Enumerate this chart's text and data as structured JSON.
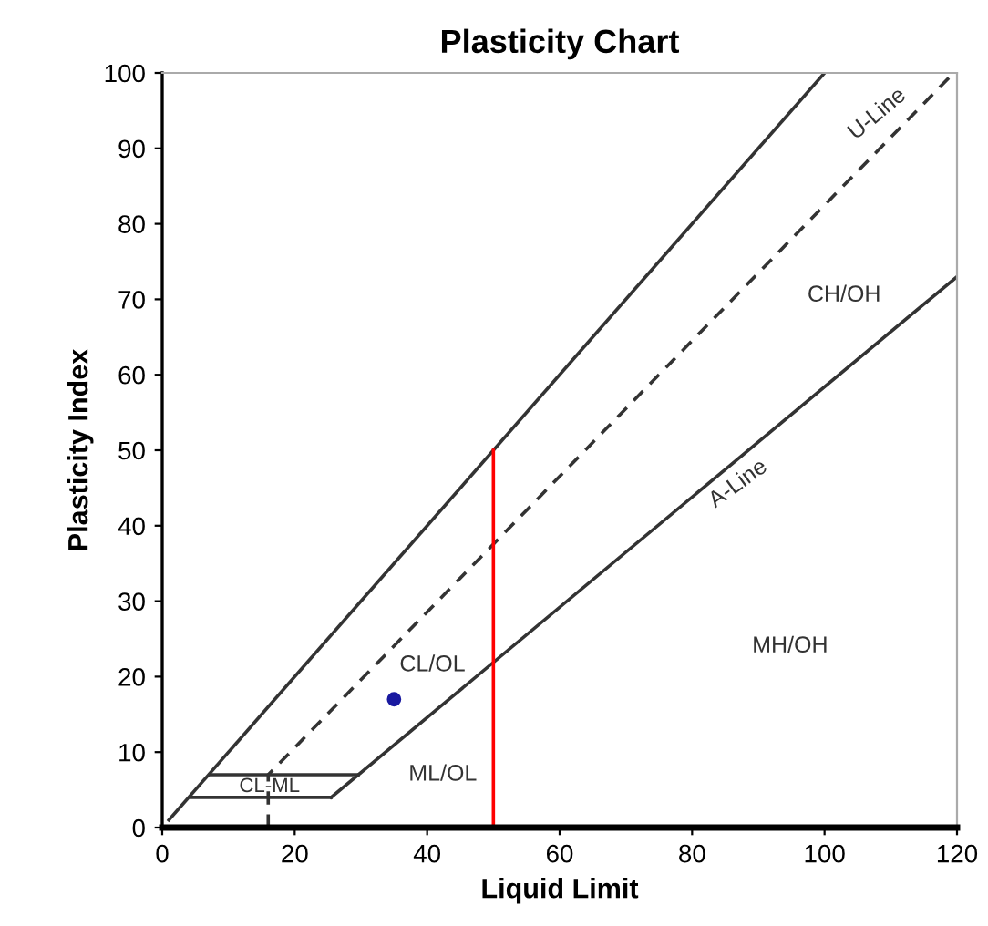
{
  "chart_data": {
    "type": "line",
    "title": "Plasticity Chart",
    "xlabel": "Liquid Limit",
    "ylabel": "Plasticity Index",
    "xlim": [
      0,
      120
    ],
    "xticks": [
      0,
      20,
      40,
      60,
      80,
      100,
      120
    ],
    "ylim": [
      0,
      100
    ],
    "yticks": [
      0,
      10,
      20,
      30,
      40,
      50,
      60,
      70,
      80,
      90,
      100
    ],
    "grid": false,
    "legend": false,
    "series": [
      {
        "color": "#333333",
        "x": [
          1,
          100
        ],
        "values": [
          1,
          100
        ]
      },
      {
        "color": "#333333",
        "line_style": "dashed",
        "x": [
          16,
          16,
          119.5
        ],
        "values": [
          0,
          7,
          100
        ]
      },
      {
        "color": "#333333",
        "x": [
          25.5,
          120
        ],
        "values": [
          4,
          73
        ]
      },
      {
        "color": "#333333",
        "x": [
          7.2,
          29.6
        ],
        "values": [
          7,
          7
        ]
      },
      {
        "color": "#333333",
        "x": [
          4.4,
          25.5
        ],
        "values": [
          4,
          4
        ]
      },
      {
        "color": "#ff0000",
        "x": [
          50,
          50
        ],
        "values": [
          0,
          50
        ]
      },
      {
        "type": "scatter",
        "color": "#1a1aa0",
        "marker": "circle",
        "x": [
          35
        ],
        "values": [
          17
        ]
      }
    ],
    "annotations": [
      "U-Line",
      "CH/OH",
      "A-Line",
      "CL/OL",
      "MH/OH",
      "ML/OL",
      "CL-ML"
    ]
  }
}
